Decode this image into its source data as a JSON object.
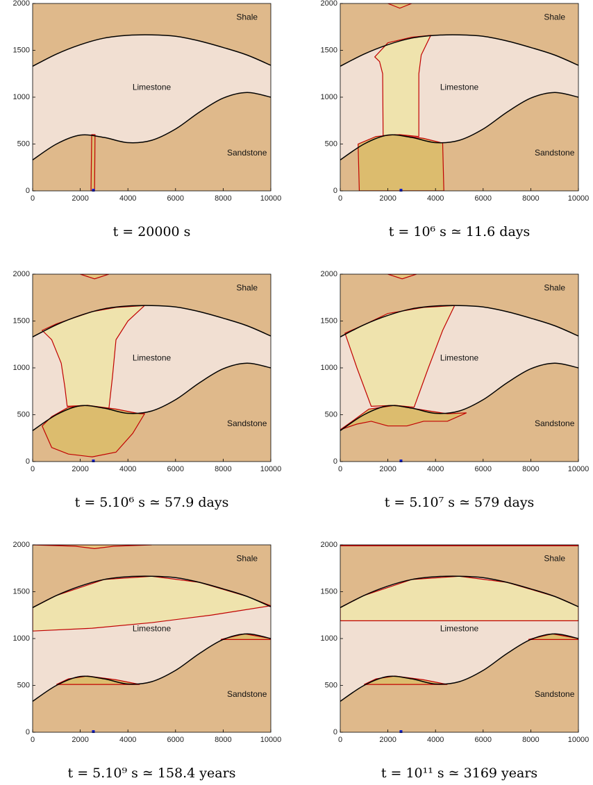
{
  "chart_data": [
    {
      "type": "area",
      "title": "t = 20000 s",
      "labels": [
        "Shale",
        "Limestone",
        "Sandstone"
      ],
      "xlim": [
        0,
        10000
      ],
      "ylim": [
        0,
        2000
      ],
      "xticks": [
        0,
        2000,
        4000,
        6000,
        8000,
        10000
      ],
      "yticks": [
        0,
        500,
        1000,
        1500,
        2000
      ],
      "background_color": "#dfb98b",
      "layer_color": "#f1dfd2",
      "x": [
        0,
        1000,
        2000,
        3000,
        4000,
        5000,
        6000,
        7000,
        8000,
        9000,
        10000
      ],
      "boundaries": [
        {
          "values": [
            1330,
            1460,
            1560,
            1630,
            1660,
            1665,
            1650,
            1600,
            1530,
            1450,
            1340
          ]
        },
        {
          "values": [
            330,
            500,
            595,
            570,
            515,
            540,
            660,
            840,
            990,
            1050,
            1000
          ]
        }
      ],
      "plumes": [
        {
          "color": "#dcbc72",
          "x": [
            2450,
            2480,
            2620,
            2600
          ],
          "y": [
            0,
            600,
            600,
            0
          ]
        }
      ],
      "source": {
        "x": 2550,
        "y": 0
      }
    },
    {
      "type": "area",
      "title": "t = 10⁶ s ≃ 11.6 days",
      "labels": [
        "Shale",
        "Limestone",
        "Sandstone"
      ],
      "xlim": [
        0,
        10000
      ],
      "ylim": [
        0,
        2000
      ],
      "xticks": [
        0,
        2000,
        4000,
        6000,
        8000,
        10000
      ],
      "yticks": [
        0,
        500,
        1000,
        1500,
        2000
      ],
      "background_color": "#dfb98b",
      "layer_color": "#f1dfd2",
      "x": [
        0,
        1000,
        2000,
        3000,
        4000,
        5000,
        6000,
        7000,
        8000,
        9000,
        10000
      ],
      "boundaries": [
        {
          "values": [
            1330,
            1460,
            1560,
            1630,
            1660,
            1665,
            1650,
            1600,
            1530,
            1450,
            1340
          ]
        },
        {
          "values": [
            330,
            500,
            595,
            570,
            515,
            540,
            660,
            840,
            990,
            1050,
            1000
          ]
        }
      ],
      "plumes": [
        {
          "color": "#efe3ad",
          "x": [
            1800,
            1780,
            1650,
            1450,
            2000,
            3000,
            3800,
            3400,
            3300,
            3300,
            2500
          ],
          "y": [
            590,
            1250,
            1380,
            1430,
            1580,
            1640,
            1660,
            1450,
            1250,
            580,
            600
          ]
        },
        {
          "color": "#dcbc6e",
          "x": [
            800,
            750,
            1500,
            2300,
            3500,
            4300,
            4350
          ],
          "y": [
            0,
            500,
            580,
            600,
            560,
            510,
            0
          ]
        },
        {
          "color": "#e6c77e",
          "x": [
            2000,
            2500,
            3000
          ],
          "y": [
            2000,
            1950,
            2000
          ]
        }
      ],
      "source": {
        "x": 2550,
        "y": 0
      }
    },
    {
      "type": "area",
      "title": "t = 5.10⁶ s ≃ 57.9 days",
      "labels": [
        "Shale",
        "Limestone",
        "Sandstone"
      ],
      "xlim": [
        0,
        10000
      ],
      "ylim": [
        0,
        2000
      ],
      "xticks": [
        0,
        2000,
        4000,
        6000,
        8000,
        10000
      ],
      "yticks": [
        0,
        500,
        1000,
        1500,
        2000
      ],
      "background_color": "#dfb98b",
      "layer_color": "#f1dfd2",
      "x": [
        0,
        1000,
        2000,
        3000,
        4000,
        5000,
        6000,
        7000,
        8000,
        9000,
        10000
      ],
      "boundaries": [
        {
          "values": [
            1330,
            1460,
            1560,
            1630,
            1660,
            1665,
            1650,
            1600,
            1530,
            1450,
            1340
          ]
        },
        {
          "values": [
            330,
            500,
            595,
            570,
            515,
            540,
            660,
            840,
            990,
            1050,
            1000
          ]
        }
      ],
      "plumes": [
        {
          "color": "#efe3ad",
          "x": [
            400,
            800,
            1200,
            1350,
            1450,
            2300,
            3200,
            3350,
            3500,
            4000,
            4700,
            3500,
            2500,
            1000
          ],
          "y": [
            1400,
            1300,
            1050,
            800,
            590,
            600,
            560,
            900,
            1300,
            1500,
            1665,
            1645,
            1600,
            1470
          ]
        },
        {
          "color": "#dcbc6e",
          "x": [
            400,
            800,
            1500,
            2500,
            3500,
            4200,
            4700,
            4500,
            3500,
            2300,
            1500,
            800
          ],
          "y": [
            380,
            150,
            80,
            50,
            100,
            300,
            510,
            510,
            560,
            600,
            580,
            480
          ]
        },
        {
          "color": "#e6c77e",
          "x": [
            2000,
            2600,
            3200
          ],
          "y": [
            2000,
            1950,
            2000
          ]
        }
      ],
      "source": {
        "x": 2550,
        "y": 0
      }
    },
    {
      "type": "area",
      "title": "t = 5.10⁷ s ≃ 579 days",
      "labels": [
        "Shale",
        "Limestone",
        "Sandstone"
      ],
      "xlim": [
        0,
        10000
      ],
      "ylim": [
        0,
        2000
      ],
      "xticks": [
        0,
        2000,
        4000,
        6000,
        8000,
        10000
      ],
      "yticks": [
        0,
        500,
        1000,
        1500,
        2000
      ],
      "background_color": "#dfb98b",
      "layer_color": "#f1dfd2",
      "x": [
        0,
        1000,
        2000,
        3000,
        4000,
        5000,
        6000,
        7000,
        8000,
        9000,
        10000
      ],
      "boundaries": [
        {
          "values": [
            1330,
            1460,
            1560,
            1630,
            1660,
            1665,
            1650,
            1600,
            1530,
            1450,
            1340
          ]
        },
        {
          "values": [
            330,
            500,
            595,
            570,
            515,
            540,
            660,
            840,
            990,
            1050,
            1000
          ]
        }
      ],
      "plumes": [
        {
          "color": "#efe3ad",
          "x": [
            200,
            700,
            1300,
            2300,
            3100,
            3700,
            4300,
            4800,
            3500,
            2000,
            1000
          ],
          "y": [
            1370,
            1000,
            590,
            600,
            580,
            1000,
            1400,
            1665,
            1645,
            1580,
            1460
          ]
        },
        {
          "color": "#dcbc6e",
          "x": [
            0,
            700,
            1300,
            2000,
            2800,
            3500,
            4500,
            5300,
            4500,
            3000,
            2300,
            1200,
            500
          ],
          "y": [
            340,
            400,
            430,
            380,
            380,
            430,
            430,
            520,
            510,
            570,
            600,
            560,
            430
          ]
        },
        {
          "color": "#e6c77e",
          "x": [
            2000,
            2600,
            3200
          ],
          "y": [
            2000,
            1950,
            2000
          ]
        }
      ],
      "source": {
        "x": 2550,
        "y": 0
      }
    },
    {
      "type": "area",
      "title": "t = 5.10⁹ s ≃ 158.4 years",
      "labels": [
        "Shale",
        "Limestone",
        "Sandstone"
      ],
      "xlim": [
        0,
        10000
      ],
      "ylim": [
        0,
        2000
      ],
      "xticks": [
        0,
        2000,
        4000,
        6000,
        8000,
        10000
      ],
      "yticks": [
        0,
        500,
        1000,
        1500,
        2000
      ],
      "background_color": "#dfb98b",
      "layer_color": "#f1dfd2",
      "x": [
        0,
        1000,
        2000,
        3000,
        4000,
        5000,
        6000,
        7000,
        8000,
        9000,
        10000
      ],
      "boundaries": [
        {
          "values": [
            1330,
            1460,
            1560,
            1630,
            1660,
            1665,
            1650,
            1600,
            1530,
            1450,
            1340
          ]
        },
        {
          "values": [
            330,
            500,
            595,
            570,
            515,
            540,
            660,
            840,
            990,
            1050,
            1000
          ]
        }
      ],
      "plumes": [
        {
          "color": "#efe3ad",
          "x": [
            0,
            2500,
            5000,
            7500,
            10000,
            9000,
            7000,
            5000,
            3000,
            1000,
            0
          ],
          "y": [
            1080,
            1110,
            1170,
            1250,
            1350,
            1450,
            1600,
            1665,
            1630,
            1460,
            1330
          ]
        },
        {
          "color": "#dcbc6e",
          "x": [
            1000,
            4500,
            3500,
            2300,
            1500
          ],
          "y": [
            510,
            510,
            560,
            600,
            570
          ]
        },
        {
          "color": "#dcbc6e",
          "x": [
            7900,
            10000,
            10000,
            8900
          ],
          "y": [
            990,
            990,
            1000,
            1050
          ]
        },
        {
          "color": "#e6c77e",
          "x": [
            0,
            1800,
            2600,
            3400,
            5000
          ],
          "y": [
            2000,
            1985,
            1960,
            1985,
            2000
          ]
        }
      ],
      "source": {
        "x": 2550,
        "y": 0
      }
    },
    {
      "type": "area",
      "title": "t = 10¹¹ s ≃ 3169 years",
      "labels": [
        "Shale",
        "Limestone",
        "Sandstone"
      ],
      "xlim": [
        0,
        10000
      ],
      "ylim": [
        0,
        2000
      ],
      "xticks": [
        0,
        2000,
        4000,
        6000,
        8000,
        10000
      ],
      "yticks": [
        0,
        500,
        1000,
        1500,
        2000
      ],
      "background_color": "#dfb98b",
      "layer_color": "#f1dfd2",
      "x": [
        0,
        1000,
        2000,
        3000,
        4000,
        5000,
        6000,
        7000,
        8000,
        9000,
        10000
      ],
      "boundaries": [
        {
          "values": [
            1330,
            1460,
            1560,
            1630,
            1660,
            1665,
            1650,
            1600,
            1530,
            1450,
            1340
          ]
        },
        {
          "values": [
            330,
            500,
            595,
            570,
            515,
            540,
            660,
            840,
            990,
            1050,
            1000
          ]
        }
      ],
      "plumes": [
        {
          "color": "#efe3ad",
          "x": [
            0,
            10000,
            10000,
            9000,
            7000,
            5000,
            3000,
            1000,
            0
          ],
          "y": [
            1190,
            1190,
            1340,
            1450,
            1600,
            1665,
            1630,
            1460,
            1330
          ]
        },
        {
          "color": "#dcbc6e",
          "x": [
            1000,
            4500,
            3500,
            2300,
            1500
          ],
          "y": [
            510,
            510,
            560,
            600,
            570
          ]
        },
        {
          "color": "#dcbc6e",
          "x": [
            7900,
            10000,
            10000,
            8900
          ],
          "y": [
            990,
            990,
            1000,
            1050
          ]
        },
        {
          "color": "#e6c77e",
          "x": [
            0,
            10000,
            10000,
            0
          ],
          "y": [
            1990,
            1990,
            2000,
            2000
          ]
        }
      ],
      "source": {
        "x": 2550,
        "y": 0
      }
    }
  ]
}
